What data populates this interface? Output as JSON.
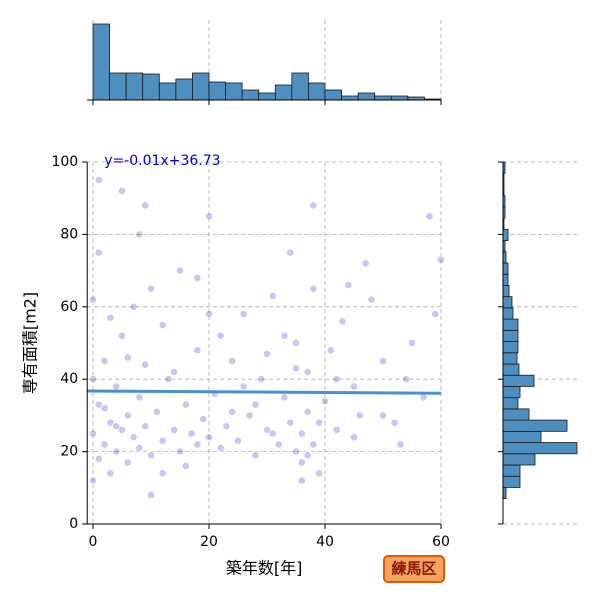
{
  "chart_data": [
    {
      "type": "scatter",
      "xlabel": "築年数[年]",
      "ylabel": "専有面積[m2]",
      "color": "#0000cc",
      "annotation": "y=-0.01x+36.73",
      "regression": {
        "slope": -0.01,
        "intercept": 36.73,
        "color": "#4a90d0"
      },
      "xlim": [
        -1,
        60
      ],
      "ylim": [
        0,
        100
      ],
      "xticks": [
        0,
        20,
        40,
        60
      ],
      "yticks": [
        0,
        20,
        40,
        60,
        80,
        100
      ],
      "grid": true,
      "x": [
        0,
        0,
        0,
        1,
        1,
        1,
        2,
        2,
        3,
        3,
        4,
        4,
        5,
        5,
        6,
        6,
        7,
        7,
        8,
        8,
        9,
        9,
        10,
        10,
        11,
        12,
        12,
        13,
        14,
        15,
        15,
        16,
        17,
        18,
        18,
        19,
        20,
        20,
        21,
        22,
        23,
        24,
        25,
        26,
        27,
        28,
        29,
        30,
        31,
        32,
        33,
        34,
        35,
        35,
        36,
        36,
        37,
        37,
        38,
        38,
        39,
        40,
        41,
        42,
        43,
        45,
        46,
        48,
        50,
        52,
        55,
        57,
        59,
        60,
        0,
        1,
        3,
        5,
        8,
        10,
        14,
        18,
        22,
        26,
        30,
        34,
        36,
        38,
        42,
        47,
        53,
        58,
        2,
        6,
        12,
        20,
        28,
        33,
        37,
        44,
        50,
        4,
        9,
        16,
        24,
        31,
        35,
        39,
        45,
        54
      ],
      "y": [
        12,
        25,
        62,
        18,
        33,
        95,
        22,
        45,
        28,
        14,
        20,
        38,
        26,
        52,
        17,
        30,
        24,
        60,
        35,
        21,
        27,
        44,
        19,
        8,
        31,
        23,
        55,
        40,
        26,
        20,
        70,
        33,
        25,
        48,
        22,
        29,
        24,
        85,
        36,
        21,
        27,
        45,
        23,
        58,
        30,
        19,
        40,
        26,
        63,
        22,
        35,
        28,
        20,
        50,
        25,
        17,
        42,
        31,
        22,
        65,
        28,
        34,
        48,
        26,
        56,
        38,
        30,
        62,
        45,
        28,
        50,
        35,
        58,
        73,
        40,
        75,
        57,
        92,
        80,
        65,
        42,
        68,
        52,
        38,
        47,
        75,
        12,
        88,
        40,
        72,
        22,
        85,
        32,
        46,
        14,
        58,
        33,
        52,
        19,
        66,
        30,
        27,
        88,
        16,
        31,
        25,
        43,
        14,
        24,
        40
      ]
    },
    {
      "type": "histogram",
      "orientation": "vertical",
      "color": "#4f8fc0",
      "bins": [
        0,
        2.857,
        5.714,
        8.571,
        11.429,
        14.286,
        17.143,
        20,
        22.857,
        25.714,
        28.571,
        31.429,
        34.286,
        37.143,
        40,
        42.857,
        45.714,
        48.571,
        51.429,
        54.286,
        57.143,
        60
      ],
      "counts": [
        76,
        27,
        27,
        26,
        17,
        21,
        27,
        18,
        17,
        10,
        7,
        15,
        27,
        17,
        10,
        4,
        7,
        4,
        4,
        3,
        1
      ]
    },
    {
      "type": "histogram",
      "orientation": "horizontal",
      "color": "#4f8fc0",
      "bins": [
        7,
        10.1,
        13.2,
        16.3,
        19.4,
        22.5,
        25.6,
        28.7,
        31.8,
        34.9,
        38,
        41.1,
        44.2,
        47.3,
        50.4,
        53.5,
        56.6,
        59.7,
        62.8,
        65.9,
        69,
        72.1,
        75.2,
        78.3,
        81.4,
        84.5,
        87.6,
        90.7,
        93.8,
        96.9,
        100
      ],
      "counts": [
        3,
        17,
        17,
        32,
        74,
        38,
        64,
        26,
        15,
        17,
        31,
        16,
        14,
        15,
        15,
        15,
        10,
        9,
        6,
        5,
        5,
        3,
        2,
        5,
        1,
        2,
        2,
        1,
        1,
        2
      ]
    }
  ],
  "badge": "練馬区"
}
